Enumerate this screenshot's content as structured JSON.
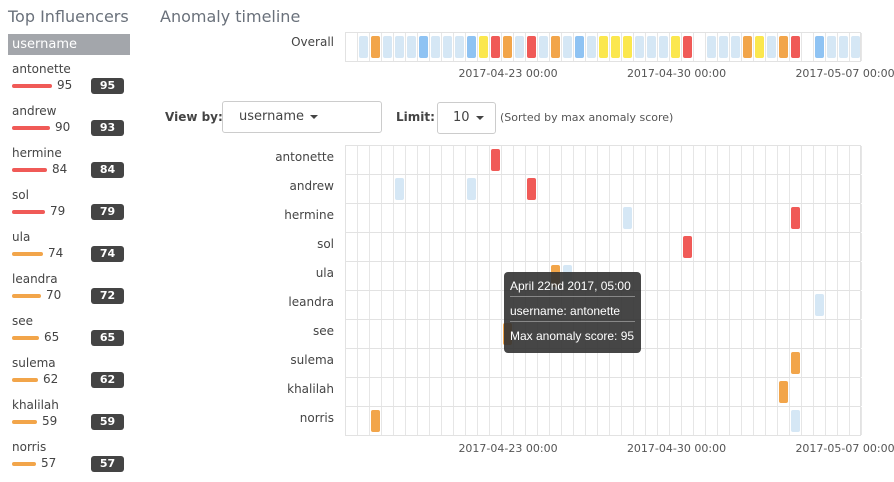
{
  "colors": {
    "critical": "#f05a57",
    "major": "#f2a54a",
    "minor": "#fbe74e",
    "warning": "#8fc3f3",
    "low": "#d5e7f5"
  },
  "sidebar": {
    "title": "Top Influencers",
    "field": "username",
    "items": [
      {
        "name": "antonette",
        "max": 95,
        "total": 95
      },
      {
        "name": "andrew",
        "max": 90,
        "total": 93
      },
      {
        "name": "hermine",
        "max": 84,
        "total": 84
      },
      {
        "name": "sol",
        "max": 79,
        "total": 79
      },
      {
        "name": "ula",
        "max": 74,
        "total": 74
      },
      {
        "name": "leandra",
        "max": 70,
        "total": 72
      },
      {
        "name": "see",
        "max": 65,
        "total": 65
      },
      {
        "name": "sulema",
        "max": 62,
        "total": 62
      },
      {
        "name": "khalilah",
        "max": 59,
        "total": 59
      },
      {
        "name": "norris",
        "max": 57,
        "total": 57
      }
    ]
  },
  "main": {
    "title": "Anomaly timeline",
    "overall_label": "Overall",
    "overall": [
      "",
      "low",
      "major",
      "low",
      "low",
      "low",
      "warning",
      "low",
      "low",
      "low",
      "warning",
      "minor",
      "critical",
      "major",
      "low",
      "critical",
      "low",
      "major",
      "low",
      "warning",
      "low",
      "minor",
      "minor",
      "minor",
      "low",
      "low",
      "low",
      "minor",
      "critical",
      "",
      "low",
      "low",
      "low",
      "major",
      "minor",
      "low",
      "major",
      "critical",
      "",
      "warning",
      "low",
      "low",
      "low"
    ],
    "ticks": [
      "2017-04-23 00:00",
      "2017-04-30 00:00",
      "2017-05-07 00:00"
    ],
    "controls": {
      "view_by_label": "View by:",
      "view_by_value": "username",
      "limit_label": "Limit:",
      "limit_value": "10",
      "sort_note": "(Sorted by max anomaly score)"
    },
    "lanes": [
      {
        "label": "antonette",
        "cells": [
          [
            12,
            "critical"
          ]
        ]
      },
      {
        "label": "andrew",
        "cells": [
          [
            4,
            "low"
          ],
          [
            10,
            "low"
          ],
          [
            15,
            "critical"
          ]
        ]
      },
      {
        "label": "hermine",
        "cells": [
          [
            23,
            "low"
          ],
          [
            37,
            "critical"
          ]
        ]
      },
      {
        "label": "sol",
        "cells": [
          [
            28,
            "critical"
          ]
        ]
      },
      {
        "label": "ula",
        "cells": [
          [
            17,
            "major"
          ],
          [
            18,
            "low"
          ]
        ]
      },
      {
        "label": "leandra",
        "cells": [
          [
            39,
            "low"
          ]
        ]
      },
      {
        "label": "see",
        "cells": [
          [
            13,
            "major"
          ]
        ]
      },
      {
        "label": "sulema",
        "cells": [
          [
            37,
            "major"
          ]
        ]
      },
      {
        "label": "khalilah",
        "cells": [
          [
            36,
            "major"
          ]
        ]
      },
      {
        "label": "norris",
        "cells": [
          [
            2,
            "major"
          ],
          [
            37,
            "low"
          ]
        ]
      }
    ],
    "tooltip": {
      "time": "April 22nd 2017, 05:00",
      "influencer": "username: antonette",
      "score": "Max anomaly score: 95"
    }
  }
}
